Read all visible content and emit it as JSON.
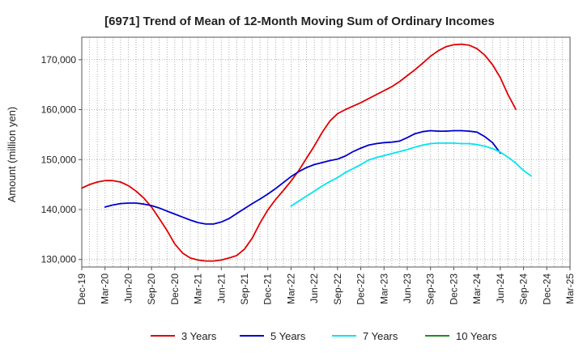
{
  "chart_data": {
    "type": "line",
    "title": "[6971]  Trend of Mean of 12-Month Moving Sum of Ordinary Incomes",
    "xlabel": "",
    "ylabel": "Amount (million yen)",
    "ylim": [
      128500,
      174500
    ],
    "yticks": [
      130000,
      140000,
      150000,
      160000,
      170000
    ],
    "ytick_labels": [
      "130,000",
      "140,000",
      "150,000",
      "160,000",
      "170,000"
    ],
    "xtick_labels": [
      "Dec-19",
      "Mar-20",
      "Jun-20",
      "Sep-20",
      "Dec-20",
      "Mar-21",
      "Jun-21",
      "Sep-21",
      "Dec-21",
      "Mar-22",
      "Jun-22",
      "Sep-22",
      "Dec-22",
      "Mar-23",
      "Jun-23",
      "Sep-23",
      "Dec-23",
      "Mar-24",
      "Jun-24",
      "Sep-24",
      "Dec-24",
      "Mar-25"
    ],
    "grid": true,
    "legend_position": "bottom",
    "series": [
      {
        "name": "3 Years",
        "color": "#e00000",
        "start_index": 0,
        "values": [
          144300,
          145000,
          145500,
          145800,
          145800,
          145500,
          144800,
          143700,
          142300,
          140500,
          138200,
          135800,
          133100,
          131300,
          130300,
          129900,
          129700,
          129700,
          129900,
          130300,
          130800,
          132100,
          134300,
          137300,
          139900,
          142000,
          143800,
          145700,
          147800,
          150300,
          152700,
          155400,
          157700,
          159200,
          160000,
          160700,
          161400,
          162200,
          163000,
          163800,
          164600,
          165600,
          166800,
          168000,
          169300,
          170700,
          171800,
          172600,
          173000,
          173100,
          172900,
          172200,
          170900,
          169000,
          166400,
          163000,
          160100
        ]
      },
      {
        "name": "5 Years",
        "color": "#0000cc",
        "start_index": 3,
        "values": [
          140500,
          140900,
          141200,
          141300,
          141300,
          141100,
          140800,
          140300,
          139700,
          139100,
          138500,
          137900,
          137400,
          137100,
          137100,
          137500,
          138200,
          139200,
          140200,
          141200,
          142100,
          143100,
          144200,
          145400,
          146600,
          147600,
          148400,
          149000,
          149400,
          149800,
          150100,
          150700,
          151600,
          152300,
          152900,
          153200,
          153400,
          153500,
          153700,
          154400,
          155200,
          155600,
          155800,
          155700,
          155700,
          155800,
          155800,
          155700,
          155500,
          154600,
          153400,
          151300
        ]
      },
      {
        "name": "7 Years",
        "color": "#00e5ee",
        "start_index": 27,
        "values": [
          140700,
          141700,
          142700,
          143700,
          144700,
          145600,
          146400,
          147400,
          148200,
          149000,
          149900,
          150400,
          150800,
          151200,
          151600,
          152000,
          152500,
          152900,
          153200,
          153300,
          153300,
          153300,
          153200,
          153200,
          153000,
          152700,
          152200,
          151500,
          150500,
          149300,
          147800,
          146700
        ]
      },
      {
        "name": "10 Years",
        "color": "#228b22",
        "start_index": 0,
        "values": []
      }
    ]
  }
}
